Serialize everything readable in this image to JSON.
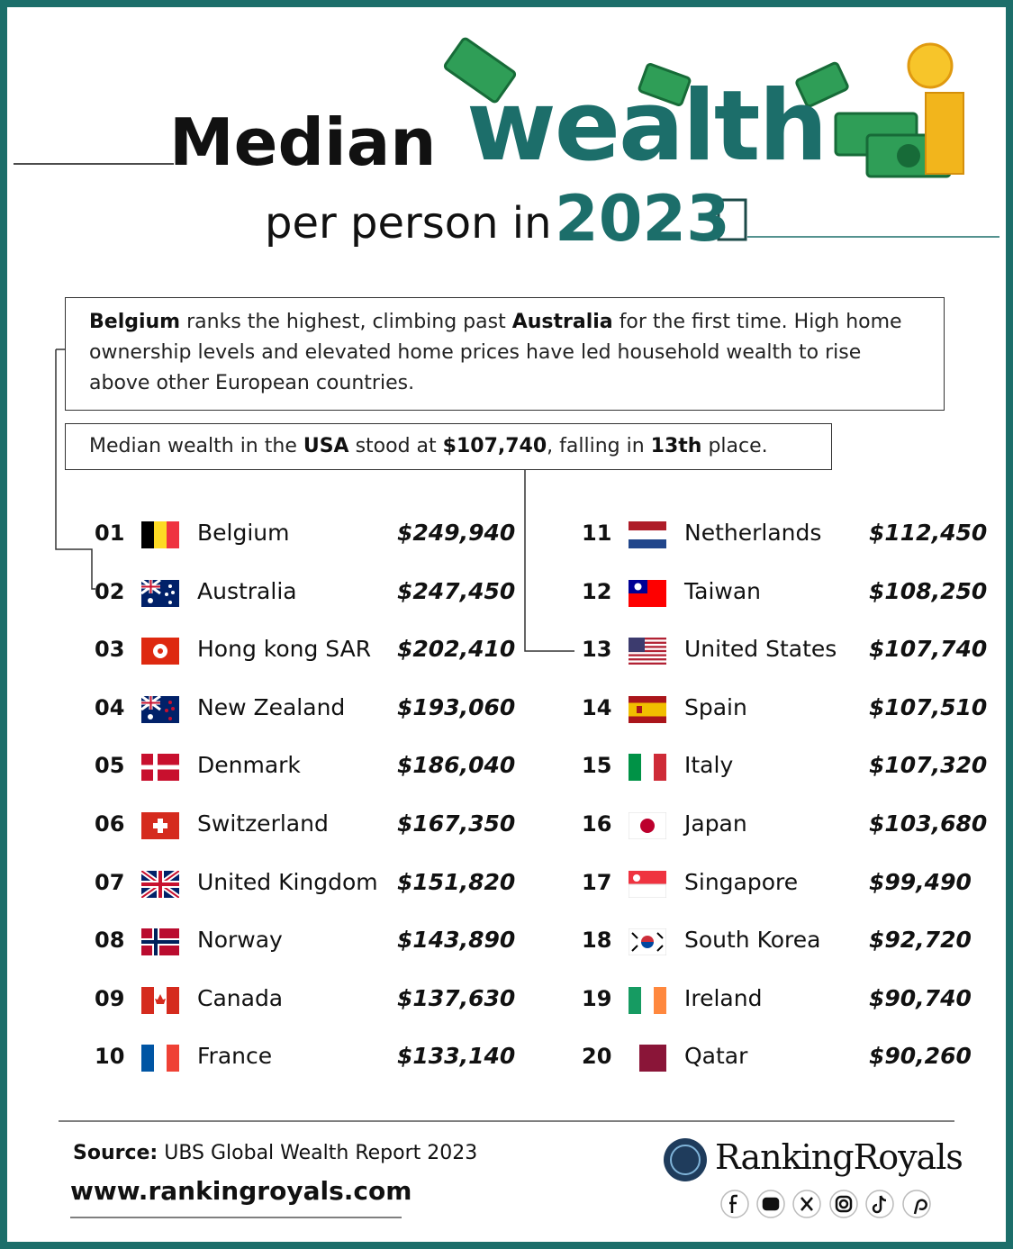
{
  "header": {
    "title_1": "Median",
    "title_2": "wealth",
    "subtitle": "per person in",
    "year": "2023"
  },
  "notes": [
    [
      {
        "text": "Belgium",
        "bold": true
      },
      {
        "text": " ranks the highest, climbing past ",
        "bold": false
      },
      {
        "text": "Australia",
        "bold": true
      },
      {
        "text": " for the first time. High home ownership levels and elevated home prices have led household wealth to rise above other European countries.",
        "bold": false
      }
    ],
    [
      {
        "text": "Median wealth in the ",
        "bold": false
      },
      {
        "text": "USA",
        "bold": true
      },
      {
        "text": " stood at ",
        "bold": false
      },
      {
        "text": "$107,740",
        "bold": true
      },
      {
        "text": ", falling in ",
        "bold": false
      },
      {
        "text": "13th",
        "bold": true
      },
      {
        "text": " place.",
        "bold": false
      }
    ]
  ],
  "rankings": [
    {
      "rank": "01",
      "country": "Belgium",
      "wealth": "$249,940"
    },
    {
      "rank": "02",
      "country": "Australia",
      "wealth": "$247,450"
    },
    {
      "rank": "03",
      "country": "Hong kong SAR",
      "wealth": "$202,410"
    },
    {
      "rank": "04",
      "country": "New Zealand",
      "wealth": "$193,060"
    },
    {
      "rank": "05",
      "country": "Denmark",
      "wealth": "$186,040"
    },
    {
      "rank": "06",
      "country": "Switzerland",
      "wealth": "$167,350"
    },
    {
      "rank": "07",
      "country": "United Kingdom",
      "wealth": "$151,820"
    },
    {
      "rank": "08",
      "country": "Norway",
      "wealth": "$143,890"
    },
    {
      "rank": "09",
      "country": "Canada",
      "wealth": "$137,630"
    },
    {
      "rank": "10",
      "country": "France",
      "wealth": "$133,140"
    },
    {
      "rank": "11",
      "country": "Netherlands",
      "wealth": "$112,450"
    },
    {
      "rank": "12",
      "country": "Taiwan",
      "wealth": "$108,250"
    },
    {
      "rank": "13",
      "country": "United States",
      "wealth": "$107,740"
    },
    {
      "rank": "14",
      "country": "Spain",
      "wealth": "$107,510"
    },
    {
      "rank": "15",
      "country": "Italy",
      "wealth": "$107,320"
    },
    {
      "rank": "16",
      "country": "Japan",
      "wealth": "$103,680"
    },
    {
      "rank": "17",
      "country": "Singapore",
      "wealth": "$99,490"
    },
    {
      "rank": "18",
      "country": "South Korea",
      "wealth": "$92,720"
    },
    {
      "rank": "19",
      "country": "Ireland",
      "wealth": "$90,740"
    },
    {
      "rank": "20",
      "country": "Qatar",
      "wealth": "$90,260"
    }
  ],
  "footer": {
    "source_label": "Source:",
    "source": " UBS Global Wealth Report 2023",
    "website": "www.rankingroyals.com",
    "brand": "RankingRoyals"
  }
}
